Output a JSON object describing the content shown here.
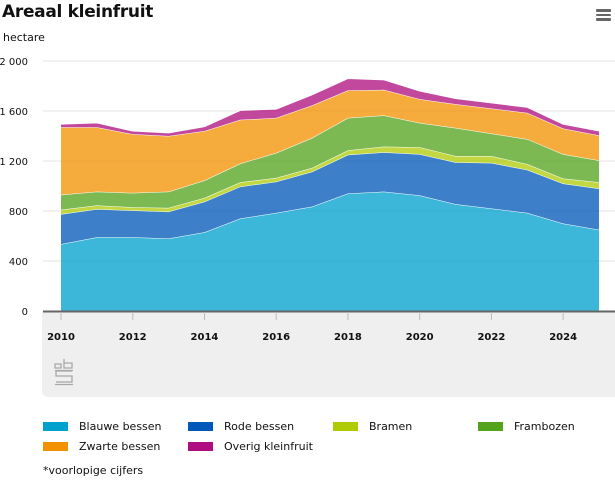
{
  "header": {
    "title": "Areaal kleinfruit",
    "unit_label": "hectare",
    "menu_icon": "hamburger-menu-icon"
  },
  "footer": {
    "logo": "cbs-logo",
    "note": "*voorlopige cijfers"
  },
  "chart_data": {
    "type": "area",
    "stacked": true,
    "title": "Areaal kleinfruit",
    "xlabel": "",
    "ylabel": "hectare",
    "x": [
      2010,
      2011,
      2012,
      2013,
      2014,
      2015,
      2016,
      2017,
      2018,
      2019,
      2020,
      2021,
      2022,
      2023,
      2024,
      2025
    ],
    "xticks": [
      "2010",
      "2012",
      "2014",
      "2016",
      "2018",
      "2020",
      "2022",
      "2024"
    ],
    "xtick_values": [
      2010,
      2012,
      2014,
      2016,
      2018,
      2020,
      2022,
      2024
    ],
    "yticks": [
      "0",
      "400",
      "800",
      "1 200",
      "1 600",
      "2 000"
    ],
    "ytick_values": [
      0,
      400,
      800,
      1200,
      1600,
      2000
    ],
    "ylim": [
      0,
      2000
    ],
    "xlim": [
      2010,
      2025
    ],
    "grid": true,
    "legend_position": "bottom",
    "series": [
      {
        "name": "Blauwe bessen",
        "color": "#00a1cd",
        "values": [
          535,
          590,
          590,
          580,
          630,
          740,
          785,
          835,
          940,
          955,
          925,
          855,
          820,
          785,
          700,
          650
        ]
      },
      {
        "name": "Rode bessen",
        "color": "#0058b8",
        "values": [
          240,
          225,
          215,
          215,
          245,
          255,
          250,
          280,
          310,
          315,
          330,
          335,
          365,
          345,
          320,
          330
        ]
      },
      {
        "name": "Bramen",
        "color": "#afcb05",
        "values": [
          35,
          30,
          25,
          30,
          30,
          35,
          30,
          30,
          35,
          45,
          55,
          50,
          55,
          45,
          40,
          50
        ]
      },
      {
        "name": "Frambozen",
        "color": "#53a31d",
        "values": [
          120,
          110,
          115,
          130,
          140,
          150,
          200,
          240,
          260,
          250,
          195,
          225,
          180,
          200,
          195,
          175
        ]
      },
      {
        "name": "Zwarte bessen",
        "color": "#f39200",
        "values": [
          540,
          515,
          470,
          445,
          395,
          350,
          280,
          260,
          220,
          205,
          190,
          190,
          200,
          210,
          205,
          200
        ]
      },
      {
        "name": "Overig kleinfruit",
        "color": "#af0e80",
        "values": [
          25,
          35,
          25,
          25,
          35,
          75,
          70,
          85,
          95,
          80,
          65,
          45,
          45,
          45,
          35,
          35
        ]
      }
    ],
    "legend_order": [
      "Blauwe bessen",
      "Rode bessen",
      "Bramen",
      "Frambozen",
      "Zwarte bessen",
      "Overig kleinfruit"
    ]
  }
}
